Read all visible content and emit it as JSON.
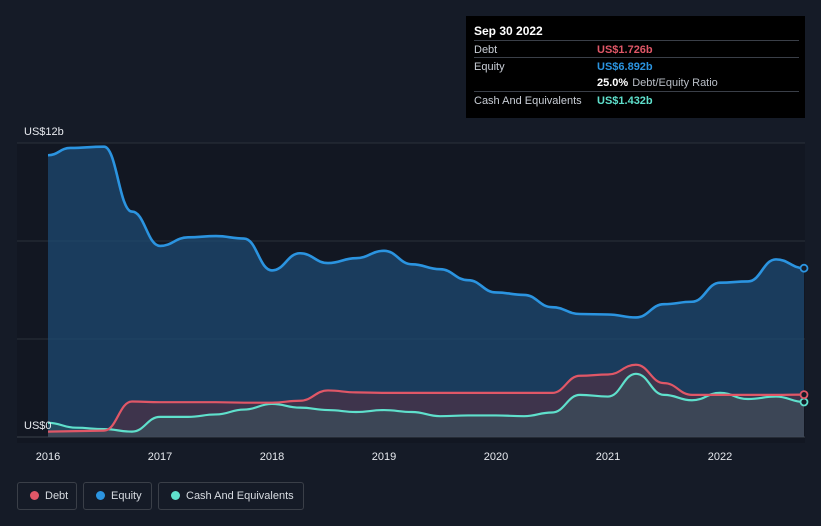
{
  "colors": {
    "debt": "#e05767",
    "equity": "#2b94e0",
    "cash": "#5fe0cc"
  },
  "tooltip": {
    "date": "Sep 30 2022",
    "rows": [
      {
        "label": "Debt",
        "value": "US$1.726b",
        "color": "#e05767"
      },
      {
        "label": "Equity",
        "value": "US$6.892b",
        "color": "#2b94e0"
      },
      {
        "label": "",
        "value": "25.0%",
        "extra": "Debt/Equity Ratio",
        "color": "#ffffff"
      },
      {
        "label": "Cash And Equivalents",
        "value": "US$1.432b",
        "color": "#5fe0cc"
      }
    ]
  },
  "legend": [
    {
      "label": "Debt",
      "color": "#e05767"
    },
    {
      "label": "Equity",
      "color": "#2b94e0"
    },
    {
      "label": "Cash And Equivalents",
      "color": "#5fe0cc"
    }
  ],
  "chart_data": {
    "type": "area",
    "ylim": [
      0,
      12
    ],
    "y_unit": "US$b",
    "y_tick_labels": [
      {
        "value": 12,
        "label": "US$12b"
      },
      {
        "value": 0,
        "label": "US$0"
      }
    ],
    "x_ticks": [
      2016,
      2017,
      2018,
      2019,
      2020,
      2021,
      2022
    ],
    "xlim": [
      2016,
      2022.75
    ],
    "grid": true,
    "legend_position": "bottom-left",
    "series": [
      {
        "key": "equity",
        "name": "Equity",
        "color": "#2b94e0",
        "points": [
          [
            2016.0,
            11.5
          ],
          [
            2016.2,
            11.8
          ],
          [
            2016.5,
            11.85
          ],
          [
            2016.75,
            9.2
          ],
          [
            2017.0,
            7.8
          ],
          [
            2017.25,
            8.15
          ],
          [
            2017.5,
            8.2
          ],
          [
            2017.75,
            8.1
          ],
          [
            2018.0,
            6.8
          ],
          [
            2018.25,
            7.5
          ],
          [
            2018.5,
            7.1
          ],
          [
            2018.75,
            7.3
          ],
          [
            2019.0,
            7.6
          ],
          [
            2019.25,
            7.05
          ],
          [
            2019.5,
            6.85
          ],
          [
            2019.75,
            6.4
          ],
          [
            2020.0,
            5.9
          ],
          [
            2020.25,
            5.8
          ],
          [
            2020.5,
            5.3
          ],
          [
            2020.75,
            5.02
          ],
          [
            2021.0,
            5.0
          ],
          [
            2021.25,
            4.88
          ],
          [
            2021.5,
            5.42
          ],
          [
            2021.75,
            5.52
          ],
          [
            2022.0,
            6.3
          ],
          [
            2022.25,
            6.35
          ],
          [
            2022.5,
            7.25
          ],
          [
            2022.75,
            6.89
          ]
        ]
      },
      {
        "key": "debt",
        "name": "Debt",
        "color": "#e05767",
        "points": [
          [
            2016.0,
            0.22
          ],
          [
            2016.25,
            0.24
          ],
          [
            2016.5,
            0.26
          ],
          [
            2016.75,
            1.45
          ],
          [
            2017.0,
            1.42
          ],
          [
            2017.25,
            1.42
          ],
          [
            2017.5,
            1.42
          ],
          [
            2017.75,
            1.4
          ],
          [
            2018.0,
            1.4
          ],
          [
            2018.25,
            1.48
          ],
          [
            2018.5,
            1.9
          ],
          [
            2018.75,
            1.82
          ],
          [
            2019.0,
            1.8
          ],
          [
            2019.25,
            1.8
          ],
          [
            2019.5,
            1.8
          ],
          [
            2019.75,
            1.8
          ],
          [
            2020.0,
            1.8
          ],
          [
            2020.25,
            1.8
          ],
          [
            2020.5,
            1.8
          ],
          [
            2020.75,
            2.5
          ],
          [
            2021.0,
            2.55
          ],
          [
            2021.25,
            2.95
          ],
          [
            2021.5,
            2.2
          ],
          [
            2021.75,
            1.72
          ],
          [
            2022.0,
            1.72
          ],
          [
            2022.25,
            1.72
          ],
          [
            2022.5,
            1.72
          ],
          [
            2022.75,
            1.73
          ]
        ]
      },
      {
        "key": "cash",
        "name": "Cash And Equivalents",
        "color": "#5fe0cc",
        "points": [
          [
            2016.0,
            0.58
          ],
          [
            2016.25,
            0.38
          ],
          [
            2016.5,
            0.32
          ],
          [
            2016.75,
            0.22
          ],
          [
            2017.0,
            0.82
          ],
          [
            2017.25,
            0.82
          ],
          [
            2017.5,
            0.92
          ],
          [
            2017.75,
            1.12
          ],
          [
            2018.0,
            1.35
          ],
          [
            2018.25,
            1.2
          ],
          [
            2018.5,
            1.1
          ],
          [
            2018.75,
            1.02
          ],
          [
            2019.0,
            1.1
          ],
          [
            2019.25,
            1.02
          ],
          [
            2019.5,
            0.85
          ],
          [
            2019.75,
            0.88
          ],
          [
            2020.0,
            0.88
          ],
          [
            2020.25,
            0.85
          ],
          [
            2020.5,
            1.0
          ],
          [
            2020.75,
            1.72
          ],
          [
            2021.0,
            1.65
          ],
          [
            2021.25,
            2.58
          ],
          [
            2021.5,
            1.72
          ],
          [
            2021.75,
            1.5
          ],
          [
            2022.0,
            1.8
          ],
          [
            2022.25,
            1.55
          ],
          [
            2022.5,
            1.65
          ],
          [
            2022.75,
            1.43
          ]
        ]
      }
    ]
  }
}
